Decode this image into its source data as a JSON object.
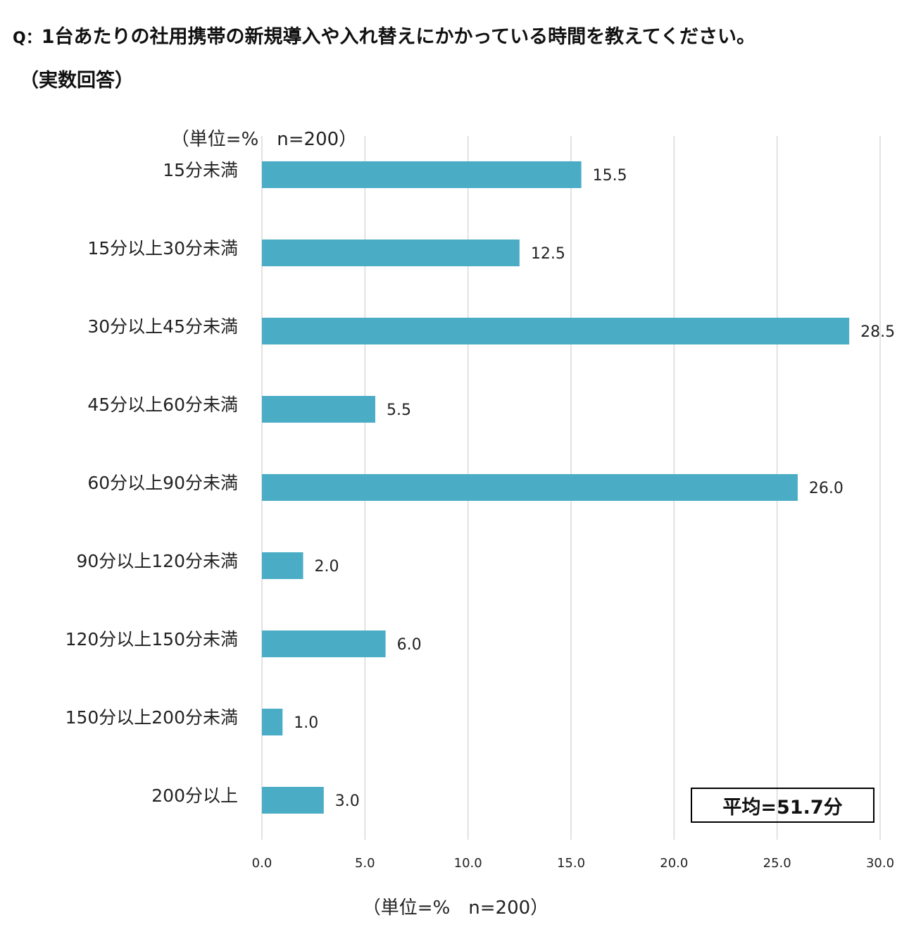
{
  "title": {
    "prefix": "Q：",
    "text": "1台あたりの社用携帯の新規導入や入れ替えにかかっている時間を教えてください。"
  },
  "subtitle": "（実数回答）",
  "unit_label_top": "（単位=%　n=200）",
  "unit_label_bottom": "（単位=%　n=200）",
  "average_label": "平均=51.7分",
  "colors": {
    "bar": "#4bacc6",
    "grid": "#d9d9d9"
  },
  "chart_data": {
    "type": "bar",
    "orientation": "horizontal",
    "categories": [
      "15分未満",
      "15分以上30分未満",
      "30分以上45分未満",
      "45分以上60分未満",
      "60分以上90分未満",
      "90分以上120分未満",
      "120分以上150分未満",
      "150分以上200分未満",
      "200分以上"
    ],
    "values": [
      15.5,
      12.5,
      28.5,
      5.5,
      26.0,
      2.0,
      6.0,
      1.0,
      3.0
    ],
    "value_labels": [
      "15.5",
      "12.5",
      "28.5",
      "5.5",
      "26.0",
      "2.0",
      "6.0",
      "1.0",
      "3.0"
    ],
    "xlim": [
      0,
      30
    ],
    "ticks": [
      "0.0",
      "5.0",
      "10.0",
      "15.0",
      "20.0",
      "25.0",
      "30.0"
    ],
    "grid": true
  }
}
